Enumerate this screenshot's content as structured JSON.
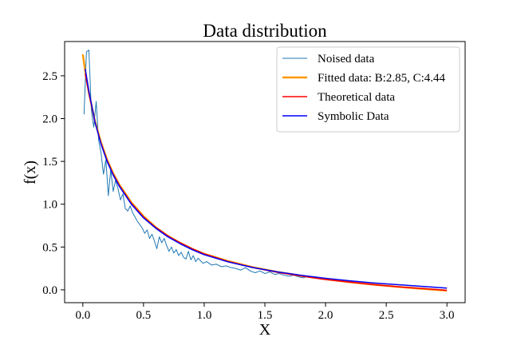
{
  "chart_data": {
    "type": "line",
    "title": "Data distribution",
    "xlabel": "X",
    "ylabel": "f(x)",
    "xlim": [
      -0.15,
      3.15
    ],
    "ylim": [
      -0.15,
      2.9
    ],
    "grid": false,
    "legend_position": "top-right",
    "x_ticks": [
      0.0,
      0.5,
      1.0,
      1.5,
      2.0,
      2.5,
      3.0
    ],
    "x_tick_labels": [
      "0.0",
      "0.5",
      "1.0",
      "1.5",
      "2.0",
      "2.5",
      "3.0"
    ],
    "y_ticks": [
      0.0,
      0.5,
      1.0,
      1.5,
      2.0,
      2.5
    ],
    "y_tick_labels": [
      "0.0",
      "0.5",
      "1.0",
      "1.5",
      "2.0",
      "2.5"
    ],
    "series": [
      {
        "name": "Noised data",
        "color": "#1f77b4",
        "style": "thin",
        "x": [
          0.01,
          0.03,
          0.05,
          0.07,
          0.09,
          0.11,
          0.13,
          0.15,
          0.17,
          0.19,
          0.21,
          0.23,
          0.25,
          0.27,
          0.29,
          0.31,
          0.33,
          0.35,
          0.37,
          0.39,
          0.41,
          0.43,
          0.45,
          0.47,
          0.49,
          0.51,
          0.53,
          0.55,
          0.57,
          0.59,
          0.61,
          0.63,
          0.65,
          0.67,
          0.69,
          0.71,
          0.73,
          0.75,
          0.77,
          0.79,
          0.81,
          0.83,
          0.85,
          0.87,
          0.89,
          0.91,
          0.93,
          0.95,
          0.97,
          0.99,
          1.02,
          1.06,
          1.1,
          1.14,
          1.18,
          1.22,
          1.26,
          1.3,
          1.34,
          1.38,
          1.42,
          1.46,
          1.5,
          1.54,
          1.58,
          1.62,
          1.66,
          1.7,
          1.74,
          1.78,
          1.82,
          1.85
        ],
        "y": [
          2.05,
          2.78,
          2.8,
          2.1,
          1.9,
          2.2,
          1.75,
          1.6,
          1.35,
          1.52,
          1.1,
          1.4,
          1.15,
          1.28,
          1.18,
          1.05,
          1.12,
          0.95,
          0.92,
          0.98,
          0.9,
          0.85,
          0.8,
          0.76,
          0.72,
          0.66,
          0.7,
          0.6,
          0.65,
          0.57,
          0.48,
          0.62,
          0.55,
          0.6,
          0.52,
          0.45,
          0.5,
          0.43,
          0.47,
          0.4,
          0.44,
          0.38,
          0.36,
          0.45,
          0.35,
          0.4,
          0.33,
          0.37,
          0.34,
          0.31,
          0.33,
          0.29,
          0.3,
          0.27,
          0.28,
          0.26,
          0.25,
          0.23,
          0.26,
          0.22,
          0.2,
          0.22,
          0.19,
          0.21,
          0.18,
          0.19,
          0.17,
          0.16,
          0.17,
          0.15,
          0.14,
          0.16
        ]
      },
      {
        "name": "Fitted data: B:2.85, C:4.44",
        "color": "#ff9900",
        "style": "thick",
        "x": [
          0.0,
          0.02,
          0.05,
          0.1,
          0.15,
          0.2,
          0.25,
          0.3,
          0.4,
          0.5,
          0.6,
          0.7,
          0.8,
          0.9,
          1.0,
          1.2,
          1.4,
          1.6,
          1.8,
          2.0,
          2.2,
          2.4,
          2.6,
          2.8,
          3.0
        ],
        "y": [
          2.75,
          2.55,
          2.3,
          1.97,
          1.72,
          1.52,
          1.36,
          1.23,
          1.02,
          0.86,
          0.73,
          0.63,
          0.55,
          0.48,
          0.42,
          0.335,
          0.265,
          0.21,
          0.165,
          0.125,
          0.09,
          0.06,
          0.035,
          0.012,
          -0.01
        ]
      },
      {
        "name": "Theoretical data",
        "color": "#ff0000",
        "style": "normal",
        "x": [
          0.02,
          0.05,
          0.1,
          0.15,
          0.2,
          0.25,
          0.3,
          0.4,
          0.5,
          0.6,
          0.7,
          0.8,
          0.9,
          1.0,
          1.2,
          1.4,
          1.6,
          1.8,
          2.0,
          2.2,
          2.4,
          2.6,
          2.8,
          3.0
        ],
        "y": [
          2.52,
          2.3,
          1.96,
          1.71,
          1.51,
          1.35,
          1.22,
          1.01,
          0.85,
          0.73,
          0.63,
          0.55,
          0.48,
          0.42,
          0.33,
          0.26,
          0.205,
          0.16,
          0.12,
          0.09,
          0.06,
          0.035,
          0.015,
          -0.005
        ]
      },
      {
        "name": "Symbolic Data",
        "color": "#0000ff",
        "style": "normal",
        "x": [
          0.02,
          0.05,
          0.1,
          0.15,
          0.2,
          0.25,
          0.3,
          0.4,
          0.5,
          0.6,
          0.7,
          0.8,
          0.9,
          1.0,
          1.2,
          1.4,
          1.6,
          1.8,
          2.0,
          2.2,
          2.4,
          2.6,
          2.8,
          3.0
        ],
        "y": [
          2.58,
          2.32,
          1.96,
          1.7,
          1.5,
          1.34,
          1.21,
          1.0,
          0.84,
          0.72,
          0.62,
          0.54,
          0.47,
          0.41,
          0.325,
          0.26,
          0.21,
          0.17,
          0.135,
          0.105,
          0.08,
          0.06,
          0.04,
          0.02
        ]
      }
    ]
  }
}
